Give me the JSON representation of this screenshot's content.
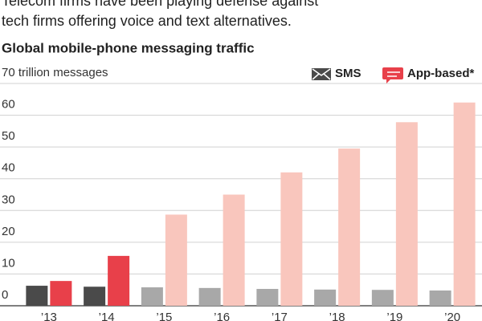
{
  "chart_data": {
    "type": "bar",
    "subtitle": [
      "Telecom firms have been playing defense against",
      "tech firms offering voice and text alternatives."
    ],
    "title": "Global mobile-phone messaging traffic",
    "categories": [
      "’13",
      "’14",
      "’15",
      "’16",
      "’17",
      "’18",
      "’19",
      "’20"
    ],
    "series": [
      {
        "name": "SMS",
        "color": "#4a4a4a",
        "colors": [
          "#4a4a4a",
          "#4a4a4a",
          "#a8a8a8",
          "#a8a8a8",
          "#a8a8a8",
          "#a8a8a8",
          "#a8a8a8",
          "#a8a8a8"
        ],
        "values": [
          6.3,
          6.0,
          5.8,
          5.6,
          5.3,
          5.1,
          5.0,
          4.8
        ]
      },
      {
        "name": "App-based*",
        "color": "#e8404a",
        "colors": [
          "#e8404a",
          "#e8404a",
          "#f9c6bd",
          "#f9c6bd",
          "#f9c6bd",
          "#f9c6bd",
          "#f9c6bd",
          "#f9c6bd"
        ],
        "values": [
          7.8,
          15.7,
          28.7,
          35.0,
          42.0,
          49.5,
          57.8,
          64.0
        ]
      }
    ],
    "ylim": [
      0,
      70
    ],
    "yticks": [
      0,
      10,
      20,
      30,
      40,
      50,
      60,
      {
        "value": 70,
        "label": "70 trillion messages"
      }
    ],
    "grid": true
  }
}
